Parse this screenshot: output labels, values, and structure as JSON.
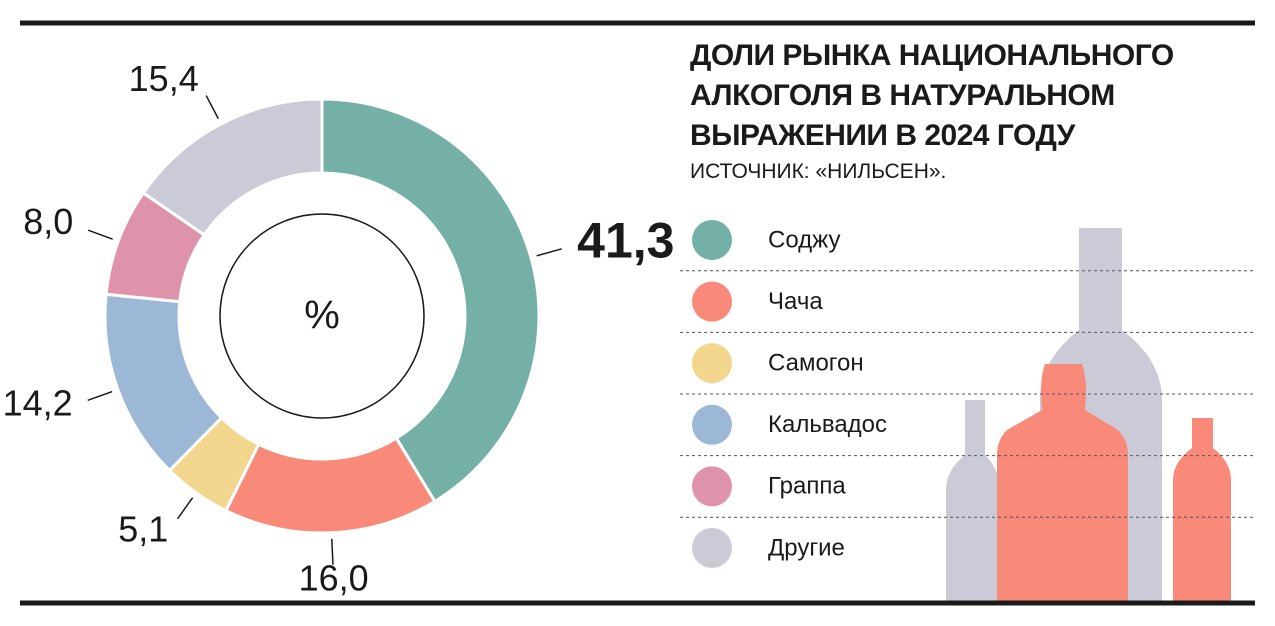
{
  "chart_data": {
    "type": "donut",
    "title": "ДОЛИ РЫНКА НАЦИОНАЛЬНОГО АЛКОГОЛЯ В НАТУРАЛЬНОМ ВЫРАЖЕНИИ В 2024 ГОДУ",
    "source": "ИСТОЧНИК: «НИЛЬСЕН».",
    "center_label": "%",
    "categories": [
      "Соджу",
      "Чача",
      "Самогон",
      "Кальвадос",
      "Граппа",
      "Другие"
    ],
    "values": [
      41.3,
      16.0,
      5.1,
      14.2,
      8.0,
      15.4
    ],
    "value_labels": [
      "41,3",
      "16,0",
      "5,1",
      "14,2",
      "8,0",
      "15,4"
    ],
    "colors": [
      "#74b0a6",
      "#f98a7a",
      "#f3d68e",
      "#9cb8d6",
      "#de93ab",
      "#cbcbd8"
    ]
  }
}
